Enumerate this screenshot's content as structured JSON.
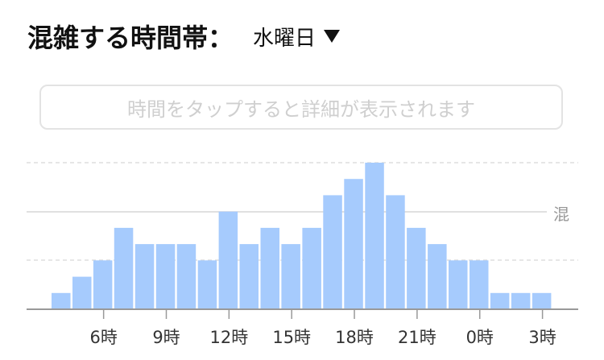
{
  "header": {
    "title": "混雑する時間帯：",
    "day": "水曜日"
  },
  "hint": "時間をタップすると詳細が表示されます",
  "chart_data": {
    "type": "bar",
    "busy_label": "混",
    "tick_labels": [
      "6時",
      "9時",
      "12時",
      "15時",
      "18時",
      "21時",
      "0時",
      "3時"
    ],
    "values": [
      1,
      2,
      3,
      5,
      4,
      4,
      4,
      3,
      6,
      4,
      5,
      4,
      5,
      7,
      8,
      9,
      7,
      5,
      4,
      3,
      3,
      1,
      1,
      1
    ],
    "ylim": [
      0,
      9
    ]
  }
}
